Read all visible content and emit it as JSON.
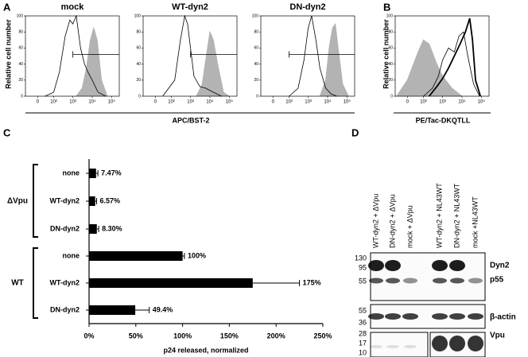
{
  "panels": {
    "A": {
      "label": "A",
      "xlabel": "APC/BST-2",
      "ylabel": "Relative cell number"
    },
    "D": {
      "label": "D",
      "lanes": [
        "WT-dyn2 + ΔVpu",
        "DN-dyn2 + ΔVpu",
        "mock + ΔVpu",
        "WT-dyn2 + NL43WT",
        "DN-dyn2 + NL43WT",
        "mock +NL43WT"
      ],
      "sections": [
        {
          "markers": [
            130,
            95,
            55
          ],
          "bands": [
            "Dyn2",
            "p55"
          ]
        },
        {
          "markers": [
            55,
            36
          ],
          "bands": [
            "β-actin"
          ]
        },
        {
          "markers": [
            28,
            17,
            10
          ],
          "bands": [
            "Vpu"
          ]
        }
      ]
    }
  },
  "chart_data": [
    {
      "type": "flow",
      "title": "mock",
      "xscale": "biexponential",
      "xlim": [
        -60,
        250000
      ],
      "ylim": [
        0,
        100
      ],
      "xticks": [
        0,
        {
          "value": 100,
          "label": "10²"
        },
        {
          "value": 1000,
          "label": "10³"
        },
        {
          "value": 10000,
          "label": "10⁴"
        },
        {
          "value": 100000,
          "label": "10⁵"
        }
      ],
      "yticks": [
        0,
        20,
        40,
        60,
        80,
        100
      ],
      "gate": {
        "x": [
          1000,
          250000
        ],
        "y": 52
      },
      "series": [
        {
          "style": "filled",
          "color": "#b3b3b3",
          "x": [
            1500,
            3000,
            5000,
            8000,
            12000,
            18000,
            30000,
            60000
          ],
          "values": [
            0,
            10,
            35,
            70,
            85,
            70,
            20,
            0
          ]
        },
        {
          "style": "outline",
          "color": "#000000",
          "x": [
            30,
            100,
            200,
            400,
            700,
            1000,
            1500,
            2500,
            4000,
            6000,
            10000,
            20000,
            50000
          ],
          "values": [
            0,
            5,
            30,
            75,
            95,
            90,
            100,
            60,
            40,
            30,
            20,
            5,
            0
          ]
        }
      ]
    },
    {
      "type": "flow",
      "title": "WT-dyn2",
      "xscale": "biexponential",
      "xlim": [
        -60,
        250000
      ],
      "ylim": [
        0,
        100
      ],
      "xticks": [
        0,
        {
          "value": 100,
          "label": "10²"
        },
        {
          "value": 1000,
          "label": "10³"
        },
        {
          "value": 10000,
          "label": "10⁴"
        },
        {
          "value": 100000,
          "label": "10⁵"
        }
      ],
      "yticks": [
        0,
        20,
        40,
        60,
        80,
        100
      ],
      "gate": {
        "x": [
          1000,
          250000
        ],
        "y": 52
      },
      "series": [
        {
          "style": "filled",
          "color": "#b3b3b3",
          "x": [
            2000,
            4000,
            7000,
            10000,
            15000,
            25000,
            50000,
            100000
          ],
          "values": [
            0,
            15,
            55,
            80,
            70,
            40,
            5,
            0
          ]
        },
        {
          "style": "outline",
          "color": "#000000",
          "x": [
            30,
            150,
            300,
            500,
            700,
            1000,
            1500,
            3000,
            6000,
            15000,
            40000
          ],
          "values": [
            0,
            20,
            70,
            100,
            90,
            60,
            25,
            12,
            10,
            5,
            0
          ]
        }
      ]
    },
    {
      "type": "flow",
      "title": "DN-dyn2",
      "xscale": "biexponential",
      "xlim": [
        -60,
        250000
      ],
      "ylim": [
        0,
        100
      ],
      "xticks": [
        0,
        {
          "value": 100,
          "label": "10²"
        },
        {
          "value": 1000,
          "label": "10³"
        },
        {
          "value": 10000,
          "label": "10⁴"
        },
        {
          "value": 100000,
          "label": "10⁵"
        }
      ],
      "yticks": [
        0,
        20,
        40,
        60,
        80,
        100
      ],
      "gate": {
        "x": [
          100,
          250000
        ],
        "y": 52
      },
      "series": [
        {
          "style": "filled",
          "color": "#b3b3b3",
          "x": [
            4000,
            8000,
            12000,
            18000,
            25000,
            35000,
            60000,
            120000
          ],
          "values": [
            0,
            20,
            60,
            85,
            90,
            60,
            15,
            0
          ]
        },
        {
          "style": "outline",
          "color": "#000000",
          "x": [
            100,
            300,
            600,
            1000,
            1500,
            2500,
            4000,
            8000,
            15000,
            30000
          ],
          "values": [
            0,
            10,
            45,
            85,
            100,
            70,
            35,
            10,
            3,
            0
          ]
        }
      ]
    },
    {
      "type": "flow",
      "panel": "B",
      "xlabel": "PE/Tac-DKQTLL",
      "ylabel": "Relative cell number",
      "xscale": "biexponential",
      "xlim": [
        -60,
        250000
      ],
      "ylim": [
        0,
        100
      ],
      "xticks": [
        0,
        {
          "value": 100,
          "label": "10²"
        },
        {
          "value": 1000,
          "label": "10³"
        },
        {
          "value": 10000,
          "label": "10⁴"
        },
        {
          "value": 100000,
          "label": "10⁵"
        }
      ],
      "yticks": [
        0,
        20,
        40,
        60,
        80,
        100
      ],
      "series": [
        {
          "style": "filled",
          "color": "#b3b3b3",
          "x": [
            -50,
            0,
            50,
            100,
            200,
            500,
            1000,
            3000,
            10000
          ],
          "values": [
            0,
            20,
            55,
            70,
            65,
            40,
            25,
            10,
            0
          ]
        },
        {
          "style": "outline",
          "color": "#000000",
          "x": [
            100,
            300,
            600,
            1000,
            2000,
            4000,
            7000,
            12000,
            20000,
            40000,
            80000
          ],
          "values": [
            0,
            10,
            25,
            45,
            60,
            55,
            75,
            80,
            50,
            15,
            0
          ]
        },
        {
          "style": "bold",
          "color": "#000000",
          "x": [
            200,
            500,
            1000,
            2000,
            4000,
            8000,
            15000,
            25000,
            35000,
            50000,
            90000
          ],
          "values": [
            0,
            12,
            22,
            35,
            50,
            65,
            80,
            97,
            70,
            20,
            0
          ]
        }
      ]
    },
    {
      "type": "hbar",
      "panel": "C",
      "xlabel": "p24 released, normalized",
      "color": "#000000",
      "xlim": [
        0,
        250
      ],
      "xticks": [
        {
          "value": 0,
          "label": "0%"
        },
        {
          "value": 50,
          "label": "50%"
        },
        {
          "value": 100,
          "label": "100%"
        },
        {
          "value": 150,
          "label": "150%"
        },
        {
          "value": 200,
          "label": "200%"
        },
        {
          "value": 250,
          "label": "250%"
        }
      ],
      "groups": [
        {
          "name": "ΔVpu",
          "categories": [
            "none",
            "WT-dyn2",
            "DN-dyn2"
          ],
          "values": [
            7.47,
            6.57,
            8.3
          ],
          "value_labels": [
            "7.47%",
            "6.57%",
            "8.30%"
          ],
          "errors": [
            2,
            1.5,
            2
          ]
        },
        {
          "name": "WT",
          "categories": [
            "none",
            "WT-dyn2",
            "DN-dyn2"
          ],
          "values": [
            100,
            175,
            49.4
          ],
          "value_labels": [
            "100%",
            "175%",
            "49.4%"
          ],
          "errors": [
            2,
            50,
            15
          ]
        }
      ]
    }
  ]
}
